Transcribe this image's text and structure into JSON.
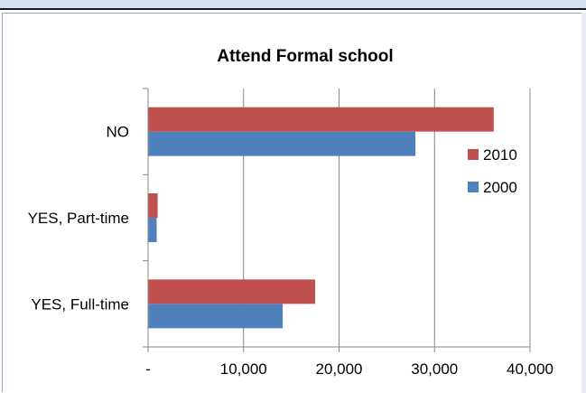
{
  "chart_data": {
    "type": "bar",
    "orientation": "horizontal",
    "title": "Attend Formal school",
    "categories": [
      "NO",
      "YES, Part-time",
      "YES, Full-time"
    ],
    "series": [
      {
        "name": "2010",
        "color": "#c0504d",
        "values": [
          36200,
          1000,
          17500
        ]
      },
      {
        "name": "2000",
        "color": "#4f81bd",
        "values": [
          28000,
          900,
          14100
        ]
      }
    ],
    "xlim": [
      0,
      40000
    ],
    "xticks": [
      0,
      10000,
      20000,
      30000,
      40000
    ],
    "xtick_labels": [
      "-",
      "10,000",
      "20,000",
      "30,000",
      "40,000"
    ],
    "grid": "vertical",
    "legend_position": "right",
    "legend_order": [
      "2010",
      "2000"
    ]
  }
}
